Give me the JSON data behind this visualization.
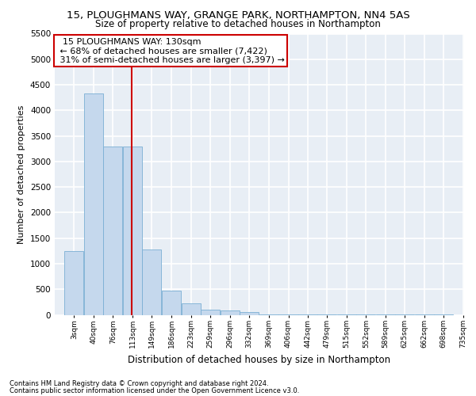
{
  "title1": "15, PLOUGHMANS WAY, GRANGE PARK, NORTHAMPTON, NN4 5AS",
  "title2": "Size of property relative to detached houses in Northampton",
  "xlabel": "Distribution of detached houses by size in Northampton",
  "ylabel": "Number of detached properties",
  "footer1": "Contains HM Land Registry data © Crown copyright and database right 2024.",
  "footer2": "Contains public sector information licensed under the Open Government Licence v3.0.",
  "bar_labels": [
    "3sqm",
    "40sqm",
    "76sqm",
    "113sqm",
    "149sqm",
    "186sqm",
    "223sqm",
    "259sqm",
    "296sqm",
    "332sqm",
    "369sqm",
    "406sqm",
    "442sqm",
    "479sqm",
    "515sqm",
    "552sqm",
    "589sqm",
    "625sqm",
    "662sqm",
    "698sqm",
    "735sqm"
  ],
  "bin_edges": [
    3,
    40,
    76,
    113,
    149,
    186,
    223,
    259,
    296,
    332,
    369,
    406,
    442,
    479,
    515,
    552,
    589,
    625,
    662,
    698,
    735
  ],
  "bar_values": [
    1250,
    4330,
    3300,
    3300,
    1280,
    480,
    220,
    100,
    80,
    60,
    15,
    5,
    5,
    5,
    5,
    5,
    2,
    2,
    2,
    2
  ],
  "bar_color": "#c5d8ed",
  "bar_edge_color": "#7aafd4",
  "annotation_text": "  15 PLOUGHMANS WAY: 130sqm  \n ← 68% of detached houses are smaller (7,422)\n 31% of semi-detached houses are larger (3,397) →",
  "vline_x": 130,
  "vline_color": "#cc0000",
  "annotation_box_color": "#cc0000",
  "ylim": [
    0,
    5500
  ],
  "xlim_left": -15,
  "xlim_right": 755,
  "bg_color": "#e8eef5",
  "grid_color": "#ffffff",
  "title1_fontsize": 9.5,
  "title2_fontsize": 8.5,
  "ylabel_fontsize": 8,
  "xlabel_fontsize": 8.5,
  "annotation_fontsize": 8,
  "yticks": [
    0,
    500,
    1000,
    1500,
    2000,
    2500,
    3000,
    3500,
    4000,
    4500,
    5000,
    5500
  ]
}
